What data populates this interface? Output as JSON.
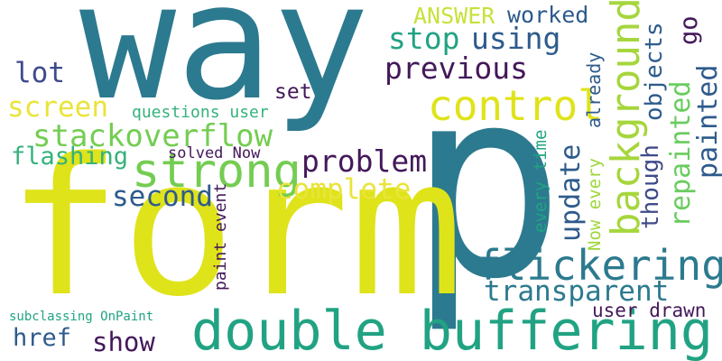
{
  "words": [
    {
      "text": "way",
      "color": "#2c7a8f"
    },
    {
      "text": "p",
      "color": "#2c7a8f"
    },
    {
      "text": "form",
      "color": "#dfe31a"
    },
    {
      "text": "double buffering",
      "color": "#21a383"
    },
    {
      "text": "background",
      "color": "#a6d63d"
    },
    {
      "text": "control",
      "color": "#dfe31a"
    },
    {
      "text": "flickering",
      "color": "#2c7a8f"
    },
    {
      "text": "strong",
      "color": "#74cd52"
    },
    {
      "text": "stackoverflow",
      "color": "#74cd52"
    },
    {
      "text": "previous",
      "color": "#44185a"
    },
    {
      "text": "problem",
      "color": "#44185a"
    },
    {
      "text": "using",
      "color": "#2e5b8c"
    },
    {
      "text": "stop",
      "color": "#21a383"
    },
    {
      "text": "complete",
      "color": "#e9e43a"
    },
    {
      "text": "screen",
      "color": "#e9e43a"
    },
    {
      "text": "second",
      "color": "#2e5b8c"
    },
    {
      "text": "flashing",
      "color": "#34b27c"
    },
    {
      "text": "lot",
      "color": "#3f4a8a"
    },
    {
      "text": "transparent",
      "color": "#2c7a8f"
    },
    {
      "text": "update",
      "color": "#2e5b8c"
    },
    {
      "text": "repainted",
      "color": "#6acc5f"
    },
    {
      "text": "painted",
      "color": "#2e5b8c"
    },
    {
      "text": "objects",
      "color": "#2e5b8c"
    },
    {
      "text": "though",
      "color": "#3f4a8a"
    },
    {
      "text": "ANSWER",
      "color": "#c8e13a"
    },
    {
      "text": "worked",
      "color": "#2e5b8c"
    },
    {
      "text": "go",
      "color": "#44185a"
    },
    {
      "text": "show",
      "color": "#44185a"
    },
    {
      "text": "href",
      "color": "#2e5b8c"
    },
    {
      "text": "set",
      "color": "#44185a"
    },
    {
      "text": "questions user",
      "color": "#34b27c"
    },
    {
      "text": "solved Now",
      "color": "#44185a"
    },
    {
      "text": "already",
      "color": "#2e5b8c"
    },
    {
      "text": "every time",
      "color": "#21a383"
    },
    {
      "text": "Now every",
      "color": "#9fd63a"
    },
    {
      "text": "paint event",
      "color": "#44185a"
    },
    {
      "text": "user drawn",
      "color": "#44185a"
    },
    {
      "text": "subclassing OnPaint",
      "color": "#21a383"
    }
  ]
}
